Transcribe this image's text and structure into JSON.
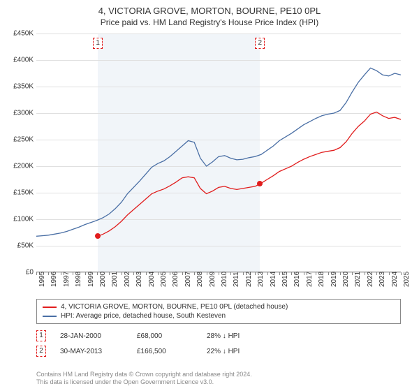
{
  "title": "4, VICTORIA GROVE, MORTON, BOURNE, PE10 0PL",
  "subtitle": "Price paid vs. HM Land Registry's House Price Index (HPI)",
  "chart": {
    "type": "line",
    "background_color": "#ffffff",
    "grid_color": "#e0e0e0",
    "shade_color": "#f1f5f9",
    "y_axis": {
      "min": 0,
      "max": 450000,
      "step": 50000,
      "labels": [
        "£0",
        "£50K",
        "£100K",
        "£150K",
        "£200K",
        "£250K",
        "£300K",
        "£350K",
        "£400K",
        "£450K"
      ]
    },
    "x_axis": {
      "min": 1995,
      "max": 2025,
      "labels": [
        "1995",
        "1996",
        "1997",
        "1998",
        "1999",
        "2000",
        "2001",
        "2002",
        "2003",
        "2004",
        "2005",
        "2006",
        "2007",
        "2008",
        "2009",
        "2010",
        "2011",
        "2012",
        "2013",
        "2014",
        "2015",
        "2016",
        "2017",
        "2018",
        "2019",
        "2020",
        "2021",
        "2022",
        "2023",
        "2024",
        "2025"
      ]
    },
    "shade_range": [
      2000.07,
      2013.41
    ],
    "series": [
      {
        "name": "HPI: Average price, detached house, South Kesteven",
        "color": "#4a6fa5",
        "line_width": 1.3,
        "points": [
          [
            1995.0,
            68000
          ],
          [
            1995.5,
            69000
          ],
          [
            1996.0,
            70000
          ],
          [
            1996.5,
            72000
          ],
          [
            1997.0,
            74000
          ],
          [
            1997.5,
            77000
          ],
          [
            1998.0,
            81000
          ],
          [
            1998.5,
            85000
          ],
          [
            1999.0,
            90000
          ],
          [
            1999.5,
            94000
          ],
          [
            2000.0,
            98000
          ],
          [
            2000.5,
            103000
          ],
          [
            2001.0,
            110000
          ],
          [
            2001.5,
            120000
          ],
          [
            2002.0,
            132000
          ],
          [
            2002.5,
            148000
          ],
          [
            2003.0,
            160000
          ],
          [
            2003.5,
            172000
          ],
          [
            2004.0,
            185000
          ],
          [
            2004.5,
            198000
          ],
          [
            2005.0,
            205000
          ],
          [
            2005.5,
            210000
          ],
          [
            2006.0,
            218000
          ],
          [
            2006.5,
            228000
          ],
          [
            2007.0,
            238000
          ],
          [
            2007.5,
            248000
          ],
          [
            2008.0,
            245000
          ],
          [
            2008.5,
            215000
          ],
          [
            2009.0,
            200000
          ],
          [
            2009.5,
            208000
          ],
          [
            2010.0,
            218000
          ],
          [
            2010.5,
            220000
          ],
          [
            2011.0,
            215000
          ],
          [
            2011.5,
            212000
          ],
          [
            2012.0,
            213000
          ],
          [
            2012.5,
            216000
          ],
          [
            2013.0,
            218000
          ],
          [
            2013.5,
            222000
          ],
          [
            2014.0,
            230000
          ],
          [
            2014.5,
            238000
          ],
          [
            2015.0,
            248000
          ],
          [
            2015.5,
            255000
          ],
          [
            2016.0,
            262000
          ],
          [
            2016.5,
            270000
          ],
          [
            2017.0,
            278000
          ],
          [
            2017.5,
            284000
          ],
          [
            2018.0,
            290000
          ],
          [
            2018.5,
            295000
          ],
          [
            2019.0,
            298000
          ],
          [
            2019.5,
            300000
          ],
          [
            2020.0,
            305000
          ],
          [
            2020.5,
            320000
          ],
          [
            2021.0,
            340000
          ],
          [
            2021.5,
            358000
          ],
          [
            2022.0,
            372000
          ],
          [
            2022.5,
            385000
          ],
          [
            2023.0,
            380000
          ],
          [
            2023.5,
            372000
          ],
          [
            2024.0,
            370000
          ],
          [
            2024.5,
            375000
          ],
          [
            2025.0,
            372000
          ]
        ]
      },
      {
        "name": "4, VICTORIA GROVE, MORTON, BOURNE, PE10 0PL (detached house)",
        "color": "#e11d1d",
        "line_width": 1.3,
        "points": [
          [
            2000.07,
            68000
          ],
          [
            2000.5,
            72000
          ],
          [
            2001.0,
            78000
          ],
          [
            2001.5,
            86000
          ],
          [
            2002.0,
            96000
          ],
          [
            2002.5,
            108000
          ],
          [
            2003.0,
            118000
          ],
          [
            2003.5,
            128000
          ],
          [
            2004.0,
            138000
          ],
          [
            2004.5,
            148000
          ],
          [
            2005.0,
            153000
          ],
          [
            2005.5,
            157000
          ],
          [
            2006.0,
            163000
          ],
          [
            2006.5,
            170000
          ],
          [
            2007.0,
            178000
          ],
          [
            2007.5,
            180000
          ],
          [
            2008.0,
            178000
          ],
          [
            2008.5,
            158000
          ],
          [
            2009.0,
            148000
          ],
          [
            2009.5,
            153000
          ],
          [
            2010.0,
            160000
          ],
          [
            2010.5,
            162000
          ],
          [
            2011.0,
            158000
          ],
          [
            2011.5,
            156000
          ],
          [
            2012.0,
            158000
          ],
          [
            2012.5,
            160000
          ],
          [
            2013.0,
            162000
          ],
          [
            2013.41,
            166500
          ],
          [
            2014.0,
            175000
          ],
          [
            2014.5,
            182000
          ],
          [
            2015.0,
            190000
          ],
          [
            2015.5,
            195000
          ],
          [
            2016.0,
            200000
          ],
          [
            2016.5,
            207000
          ],
          [
            2017.0,
            213000
          ],
          [
            2017.5,
            218000
          ],
          [
            2018.0,
            222000
          ],
          [
            2018.5,
            226000
          ],
          [
            2019.0,
            228000
          ],
          [
            2019.5,
            230000
          ],
          [
            2020.0,
            235000
          ],
          [
            2020.5,
            246000
          ],
          [
            2021.0,
            262000
          ],
          [
            2021.5,
            275000
          ],
          [
            2022.0,
            285000
          ],
          [
            2022.5,
            298000
          ],
          [
            2023.0,
            302000
          ],
          [
            2023.5,
            295000
          ],
          [
            2024.0,
            290000
          ],
          [
            2024.5,
            292000
          ],
          [
            2025.0,
            288000
          ]
        ]
      }
    ],
    "sale_markers": [
      {
        "num": "1",
        "year": 2000.07,
        "price": 68000
      },
      {
        "num": "2",
        "year": 2013.41,
        "price": 166500
      }
    ],
    "title_fontsize": 13,
    "subtitle_fontsize": 12,
    "axis_fontsize": 10
  },
  "legend": {
    "items": [
      {
        "color": "#e11d1d",
        "label": "4, VICTORIA GROVE, MORTON, BOURNE, PE10 0PL (detached house)"
      },
      {
        "color": "#4a6fa5",
        "label": "HPI: Average price, detached house, South Kesteven"
      }
    ]
  },
  "sales": [
    {
      "num": "1",
      "date": "28-JAN-2000",
      "price": "£68,000",
      "diff": "28% ↓ HPI"
    },
    {
      "num": "2",
      "date": "30-MAY-2013",
      "price": "£166,500",
      "diff": "22% ↓ HPI"
    }
  ],
  "footer": {
    "line1": "Contains HM Land Registry data © Crown copyright and database right 2024.",
    "line2": "This data is licensed under the Open Government Licence v3.0."
  }
}
